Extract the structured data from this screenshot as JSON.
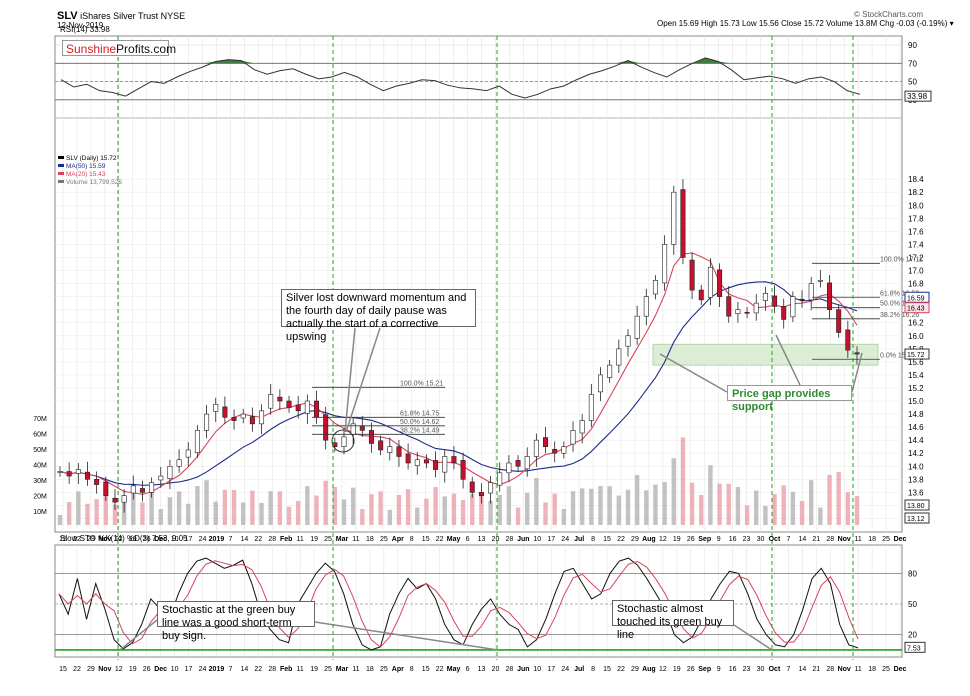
{
  "header": {
    "symbol": "SLV",
    "name": "iShares Silver Trust NYSE",
    "date": "12-Nov-2019",
    "quote": "Open 15.69  High 15.73  Low 15.56  Close 15.72  Volume 13.8M  Chg -0.03 (-0.19%) ▾",
    "credit": "© StockCharts.com"
  },
  "logo": {
    "part1": "Sunshine",
    "part2": "Profits.com"
  },
  "colors": {
    "up": "#ffffff",
    "down": "#c8102e",
    "ma50": "#1f2a8a",
    "ma20": "#d6455d",
    "rsi_fill": "#3f7a3f",
    "gap": "#d9ecd2",
    "buyline": "#22a022",
    "volume": "#b3b3b3"
  },
  "chart_data": [
    {
      "type": "line",
      "name": "rsi",
      "label": "RSI(14) 33.98",
      "ylim": [
        10,
        100
      ],
      "yticks": [
        10,
        30,
        50,
        70,
        90
      ],
      "last_value": "33.98",
      "values": [
        52,
        44,
        47,
        40,
        38,
        34,
        42,
        50,
        48,
        55,
        61,
        66,
        72,
        74,
        73,
        63,
        58,
        62,
        64,
        58,
        53,
        55,
        60,
        55,
        47,
        40,
        45,
        48,
        52,
        51,
        46,
        43,
        42,
        40,
        45,
        36,
        32,
        36,
        42,
        45,
        52,
        58,
        62,
        67,
        73,
        66,
        60,
        55,
        63,
        70,
        76,
        72,
        63,
        52,
        54,
        56,
        53,
        48,
        53,
        55,
        50,
        40,
        36
      ]
    },
    {
      "type": "candlestick",
      "name": "price",
      "legend": [
        "SLV (Daily) 15.72",
        "MA(50) 15.59",
        "MA(20) 15.43",
        "Volume 13,799,526"
      ],
      "ylim": [
        13.1,
        19.0
      ],
      "yticks": [
        13.2,
        13.4,
        13.6,
        13.8,
        14.0,
        14.2,
        14.4,
        14.6,
        14.8,
        15.0,
        15.2,
        15.4,
        15.6,
        15.8,
        16.0,
        16.2,
        16.4,
        16.6,
        16.8,
        17.0,
        17.2,
        17.4,
        17.6,
        17.8,
        18.0,
        18.2,
        18.4
      ],
      "price_badges": [
        "16.59",
        "16.43",
        "15.72",
        "13.80",
        "13.12"
      ],
      "volume_axis": [
        "10M",
        "20M",
        "30M",
        "40M",
        "50M",
        "60M",
        "70M"
      ],
      "closes": [
        13.92,
        13.85,
        13.95,
        13.8,
        13.72,
        13.55,
        13.45,
        13.55,
        13.7,
        13.6,
        13.75,
        13.85,
        14.0,
        14.1,
        14.25,
        14.55,
        14.8,
        14.95,
        14.75,
        14.7,
        14.8,
        14.65,
        14.85,
        15.1,
        15.0,
        14.9,
        14.85,
        15.0,
        14.75,
        14.4,
        14.3,
        14.45,
        14.65,
        14.55,
        14.35,
        14.25,
        14.3,
        14.15,
        14.05,
        14.1,
        14.05,
        13.95,
        14.15,
        14.05,
        13.8,
        13.6,
        13.55,
        13.75,
        13.9,
        14.05,
        14.0,
        14.15,
        14.4,
        14.3,
        14.2,
        14.3,
        14.55,
        14.7,
        15.1,
        15.4,
        15.55,
        15.8,
        16.0,
        16.3,
        16.6,
        16.85,
        17.4,
        18.2,
        17.2,
        16.7,
        16.55,
        17.05,
        16.6,
        16.3,
        16.4,
        16.35,
        16.5,
        16.65,
        16.45,
        16.25,
        16.6,
        16.55,
        16.8,
        16.85,
        16.4,
        16.05,
        15.78,
        15.72
      ],
      "fib_levels": [
        {
          "label": "100.0% 15.21",
          "value": 15.21
        },
        {
          "label": "61.8% 14.75",
          "value": 14.75
        },
        {
          "label": "50.0% 14.62",
          "value": 14.62
        },
        {
          "label": "38.2% 14.49",
          "value": 14.49
        },
        {
          "label": "100.0% 17.11",
          "value": 17.11
        },
        {
          "label": "61.8% 16.59",
          "value": 16.59
        },
        {
          "label": "50.0% 16.43",
          "value": 16.43
        },
        {
          "label": "38.2% 16.26",
          "value": 16.26
        },
        {
          "label": "0.0% 15.64",
          "value": 15.64
        }
      ],
      "gap_zone": [
        15.55,
        15.87
      ]
    },
    {
      "type": "line",
      "name": "stochastic",
      "label": "Slow STO %K(14) %D(3) 7.53, 9.05",
      "ylim": [
        0,
        100
      ],
      "yticks": [
        20,
        50,
        80
      ],
      "last_value": "7.53",
      "values": [
        60,
        40,
        75,
        35,
        70,
        45,
        15,
        6,
        12,
        30,
        55,
        45,
        35,
        60,
        80,
        92,
        95,
        90,
        85,
        88,
        93,
        70,
        40,
        25,
        15,
        12,
        50,
        65,
        80,
        90,
        82,
        60,
        30,
        10,
        5,
        8,
        40,
        60,
        75,
        65,
        70,
        55,
        30,
        15,
        10,
        30,
        45,
        55,
        40,
        30,
        25,
        8,
        15,
        35,
        60,
        82,
        85,
        70,
        55,
        60,
        80,
        92,
        95,
        88,
        75,
        60,
        45,
        20,
        12,
        18,
        35,
        55,
        70,
        82,
        80,
        60,
        35,
        20,
        10,
        8,
        20,
        45,
        75,
        85,
        70,
        30,
        10,
        7
      ]
    }
  ],
  "x_axis": {
    "labels": [
      "15",
      "22",
      "29",
      "Nov",
      "12",
      "19",
      "26",
      "Dec",
      "10",
      "17",
      "24",
      "2019",
      "7",
      "14",
      "22",
      "28",
      "Feb",
      "11",
      "19",
      "25",
      "Mar",
      "11",
      "18",
      "25",
      "Apr",
      "8",
      "15",
      "22",
      "May",
      "6",
      "13",
      "20",
      "28",
      "Jun",
      "10",
      "17",
      "24",
      "Jul",
      "8",
      "15",
      "22",
      "29",
      "Aug",
      "12",
      "19",
      "26",
      "Sep",
      "9",
      "16",
      "23",
      "30",
      "Oct",
      "7",
      "14",
      "21",
      "28",
      "Nov",
      "11",
      "18",
      "25",
      "Dec"
    ]
  },
  "annotations": {
    "momentum": "Silver lost downward momentum and the fourth day of daily pause was actually the start of a corrective upswing",
    "gap": "Price gap provides support",
    "stoch_left": "Stochastic at the green buy line was a good short-term buy sign.",
    "stoch_right": "Stochastic almost touched its green buy line"
  }
}
